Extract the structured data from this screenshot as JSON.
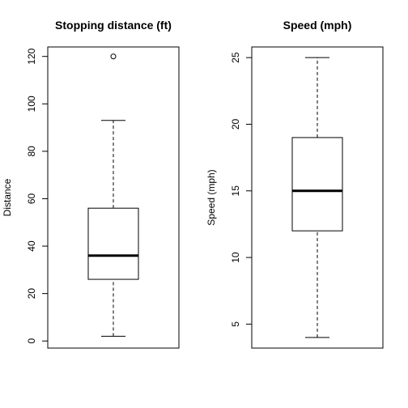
{
  "chart_data": [
    {
      "type": "boxplot",
      "title": "Stopping distance (ft)",
      "ylabel": "Distance",
      "xlabel": "",
      "ylim": [
        -3,
        124
      ],
      "ticks": [
        0,
        20,
        40,
        60,
        80,
        100,
        120
      ],
      "tick_labels": [
        "0",
        "20",
        "40",
        "60",
        "80",
        "100",
        "120"
      ],
      "whisker_low": 2,
      "q1": 26,
      "median": 36,
      "q3": 56,
      "whisker_high": 93,
      "outliers": [
        120
      ]
    },
    {
      "type": "boxplot",
      "title": "Speed (mph)",
      "ylabel": "Speed (mph)",
      "xlabel": "",
      "ylim": [
        3.2,
        25.8
      ],
      "ticks": [
        5,
        10,
        15,
        20,
        25
      ],
      "tick_labels": [
        "5",
        "10",
        "15",
        "20",
        "25"
      ],
      "whisker_low": 4,
      "q1": 12,
      "median": 15,
      "q3": 19,
      "whisker_high": 25,
      "outliers": []
    }
  ]
}
